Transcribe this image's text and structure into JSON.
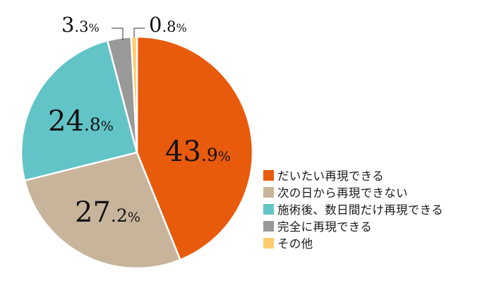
{
  "chart_data": {
    "type": "pie",
    "title": "",
    "start_angle_deg": 0,
    "direction": "clockwise",
    "categories": [
      "だいたい再現できる",
      "次の日から再現できない",
      "施術後、数日間だけ再現できる",
      "完全に再現できる",
      "その他"
    ],
    "values": [
      43.9,
      27.2,
      24.8,
      3.3,
      0.8
    ],
    "unit": "%",
    "colors": [
      "#E85A0C",
      "#C8B49B",
      "#62C4C6",
      "#999999",
      "#FFCC6E"
    ],
    "data_labels": [
      {
        "int": "43",
        "dec": ".9",
        "pct": "%"
      },
      {
        "int": "27",
        "dec": ".2",
        "pct": "%"
      },
      {
        "int": "24",
        "dec": ".8",
        "pct": "%"
      },
      {
        "int": "3",
        "dec": ".3",
        "pct": "%"
      },
      {
        "int": "0",
        "dec": ".8",
        "pct": "%"
      }
    ],
    "legend_position": "right-bottom"
  },
  "legend": {
    "items": [
      {
        "label": "だいたい再現できる",
        "color": "#E85A0C"
      },
      {
        "label": "次の日から再現できない",
        "color": "#C8B49B"
      },
      {
        "label": "施術後、数日間だけ再現できる",
        "color": "#62C4C6"
      },
      {
        "label": "完全に再現できる",
        "color": "#999999"
      },
      {
        "label": "その他",
        "color": "#FFCC6E"
      }
    ]
  }
}
